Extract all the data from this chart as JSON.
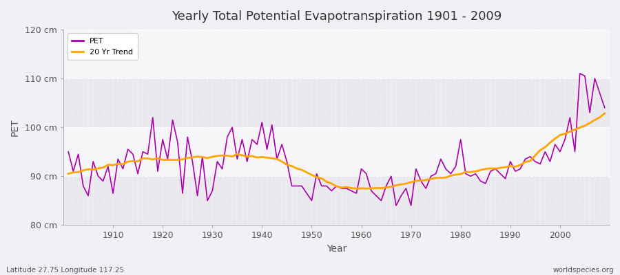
{
  "title": "Yearly Total Potential Evapotranspiration 1901 - 2009",
  "xlabel": "Year",
  "ylabel": "PET",
  "lat_lon_label": "Latitude 27.75 Longitude 117.25",
  "watermark": "worldspecies.org",
  "pet_color": "#aa00aa",
  "trend_color": "#ffa500",
  "fig_bg_color": "#f0f0f5",
  "plot_bg_light": "#f5f5f8",
  "plot_bg_dark": "#e8e8ee",
  "ylim": [
    80,
    120
  ],
  "yticks": [
    80,
    90,
    100,
    110,
    120
  ],
  "ytick_labels": [
    "80 cm",
    "90 cm",
    "100 cm",
    "110 cm",
    "120 cm"
  ],
  "years": [
    1901,
    1902,
    1903,
    1904,
    1905,
    1906,
    1907,
    1908,
    1909,
    1910,
    1911,
    1912,
    1913,
    1914,
    1915,
    1916,
    1917,
    1918,
    1919,
    1920,
    1921,
    1922,
    1923,
    1924,
    1925,
    1926,
    1927,
    1928,
    1929,
    1930,
    1931,
    1932,
    1933,
    1934,
    1935,
    1936,
    1937,
    1938,
    1939,
    1940,
    1941,
    1942,
    1943,
    1944,
    1945,
    1946,
    1947,
    1948,
    1949,
    1950,
    1951,
    1952,
    1953,
    1954,
    1955,
    1956,
    1957,
    1958,
    1959,
    1960,
    1961,
    1962,
    1963,
    1964,
    1965,
    1966,
    1967,
    1968,
    1969,
    1970,
    1971,
    1972,
    1973,
    1974,
    1975,
    1976,
    1977,
    1978,
    1979,
    1980,
    1981,
    1982,
    1983,
    1984,
    1985,
    1986,
    1987,
    1988,
    1989,
    1990,
    1991,
    1992,
    1993,
    1994,
    1995,
    1996,
    1997,
    1998,
    1999,
    2000,
    2001,
    2002,
    2003,
    2004,
    2005,
    2006,
    2007,
    2008,
    2009
  ],
  "pet_values": [
    95.0,
    91.0,
    94.5,
    88.0,
    86.0,
    93.0,
    90.0,
    89.0,
    92.0,
    86.5,
    93.5,
    91.5,
    95.5,
    94.5,
    90.5,
    95.0,
    94.5,
    102.0,
    91.0,
    97.5,
    93.5,
    101.5,
    97.0,
    86.5,
    98.0,
    93.0,
    86.0,
    94.0,
    85.0,
    87.0,
    93.0,
    91.5,
    98.0,
    100.0,
    93.5,
    97.5,
    93.0,
    97.5,
    96.5,
    101.0,
    95.5,
    100.5,
    93.5,
    96.5,
    93.0,
    88.0,
    88.0,
    88.0,
    86.5,
    85.0,
    90.5,
    88.0,
    88.0,
    87.0,
    88.0,
    87.5,
    87.5,
    87.0,
    86.5,
    91.5,
    90.5,
    87.0,
    86.0,
    85.0,
    88.0,
    90.0,
    84.0,
    86.0,
    87.5,
    84.0,
    91.5,
    89.0,
    87.5,
    90.0,
    90.5,
    93.5,
    91.5,
    90.5,
    92.0,
    97.5,
    90.5,
    90.0,
    90.5,
    89.0,
    88.5,
    91.0,
    91.5,
    90.5,
    89.5,
    93.0,
    91.0,
    91.5,
    93.5,
    94.0,
    93.0,
    92.5,
    95.0,
    93.0,
    96.5,
    95.0,
    97.5,
    102.0,
    95.0,
    111.0,
    110.5,
    103.0,
    110.0,
    107.0,
    104.0
  ]
}
